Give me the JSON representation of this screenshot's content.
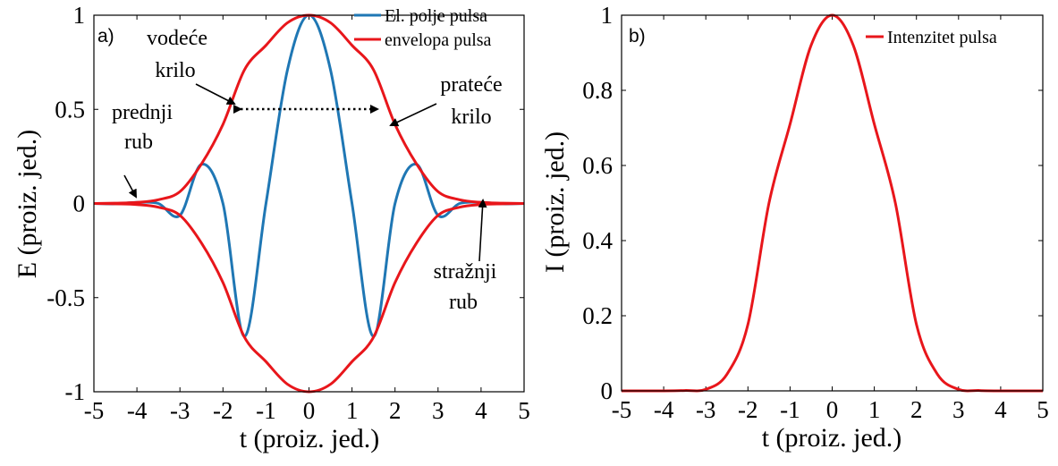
{
  "chart_data": [
    {
      "type": "line",
      "panel_label": "a)",
      "xlabel": "t (proiz. jed.)",
      "ylabel": "E (proiz. jed.)",
      "xlim": [
        -5,
        5
      ],
      "ylim": [
        -1,
        1
      ],
      "xticks": [
        "-5",
        "-4",
        "-3",
        "-2",
        "-1",
        "0",
        "1",
        "2",
        "3",
        "4",
        "5"
      ],
      "yticks": [
        "-1",
        "-0.5",
        "0",
        "0.5",
        "1"
      ],
      "legend_position": "top-right",
      "series": [
        {
          "name": "El. polje pulsa",
          "color": "#1f77b4",
          "x": [
            -5,
            -4.5,
            -4,
            -3.5,
            -3,
            -2.5,
            -2,
            -1.5,
            -1,
            -0.5,
            0,
            0.5,
            1,
            1.5,
            2,
            2.5,
            3,
            3.5,
            4,
            4.5,
            5
          ],
          "y": [
            0,
            -0.002,
            0.006,
            0,
            -0.063,
            0.208,
            0,
            -0.706,
            0,
            0.71,
            1,
            0.71,
            0,
            -0.706,
            0,
            0.208,
            -0.063,
            0,
            0.006,
            -0.002,
            0
          ]
        },
        {
          "name": "envelopa pulsa",
          "color": "#e8161b",
          "x": [
            -5,
            -4.5,
            -4,
            -3.5,
            -3,
            -2.5,
            -2,
            -1.5,
            -1,
            -0.5,
            0,
            0.5,
            1,
            1.5,
            2,
            2.5,
            3,
            3.5,
            4,
            4.5,
            5
          ],
          "y": [
            0,
            0.002,
            0.006,
            0.02,
            0.063,
            0.21,
            0.42,
            0.71,
            0.84,
            0.96,
            1,
            0.96,
            0.84,
            0.71,
            0.42,
            0.21,
            0.063,
            0.02,
            0.006,
            0.002,
            0
          ]
        }
      ],
      "annotations": [
        {
          "text": "vodeće krilo",
          "lines": [
            "vodeće",
            "krilo"
          ]
        },
        {
          "text": "prateće krilo",
          "lines": [
            "prateće",
            "krilo"
          ]
        },
        {
          "text": "prednji rub",
          "lines": [
            "prednji",
            "rub"
          ]
        },
        {
          "text": "stražnji rub",
          "lines": [
            "stražnji",
            "rub"
          ]
        }
      ]
    },
    {
      "type": "line",
      "panel_label": "b)",
      "xlabel": "t (proiz. jed.)",
      "ylabel": "I (proiz. jed.)",
      "xlim": [
        -5,
        5
      ],
      "ylim": [
        0,
        1
      ],
      "xticks": [
        "-5",
        "-4",
        "-3",
        "-2",
        "-1",
        "0",
        "1",
        "2",
        "3",
        "4",
        "5"
      ],
      "yticks": [
        "0",
        "0.2",
        "0.4",
        "0.6",
        "0.8",
        "1"
      ],
      "legend_position": "top-right",
      "series": [
        {
          "name": "Intenzitet pulsa",
          "color": "#e8161b",
          "x": [
            -5,
            -4.5,
            -4,
            -3.5,
            -3,
            -2.5,
            -2,
            -1.5,
            -1,
            -0.5,
            0,
            0.5,
            1,
            1.5,
            2,
            2.5,
            3,
            3.5,
            4,
            4.5,
            5
          ],
          "y": [
            0,
            0,
            0,
            0.001,
            0.004,
            0.044,
            0.177,
            0.5,
            0.71,
            0.92,
            1,
            0.92,
            0.71,
            0.5,
            0.177,
            0.044,
            0.004,
            0.001,
            0,
            0,
            0
          ]
        }
      ]
    }
  ]
}
